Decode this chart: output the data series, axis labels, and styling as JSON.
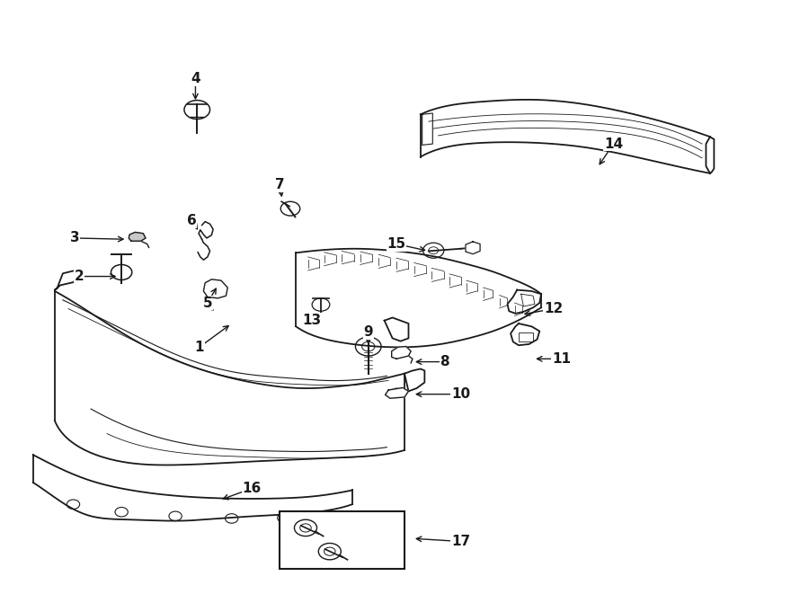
{
  "background_color": "#ffffff",
  "line_color": "#1a1a1a",
  "fig_width": 9.0,
  "fig_height": 6.61,
  "dpi": 100,
  "labels": [
    [
      1,
      0.245,
      0.415,
      0.285,
      0.455
    ],
    [
      2,
      0.095,
      0.535,
      0.145,
      0.535
    ],
    [
      3,
      0.09,
      0.6,
      0.155,
      0.598
    ],
    [
      4,
      0.24,
      0.87,
      0.24,
      0.83
    ],
    [
      5,
      0.255,
      0.49,
      0.268,
      0.52
    ],
    [
      6,
      0.235,
      0.63,
      0.245,
      0.61
    ],
    [
      7,
      0.345,
      0.69,
      0.348,
      0.665
    ],
    [
      8,
      0.55,
      0.39,
      0.51,
      0.39
    ],
    [
      9,
      0.455,
      0.44,
      0.455,
      0.415
    ],
    [
      10,
      0.57,
      0.335,
      0.51,
      0.335
    ],
    [
      11,
      0.695,
      0.395,
      0.66,
      0.395
    ],
    [
      12,
      0.685,
      0.48,
      0.645,
      0.47
    ],
    [
      13,
      0.385,
      0.46,
      0.395,
      0.475
    ],
    [
      14,
      0.76,
      0.76,
      0.74,
      0.72
    ],
    [
      15,
      0.49,
      0.59,
      0.53,
      0.578
    ],
    [
      16,
      0.31,
      0.175,
      0.27,
      0.155
    ],
    [
      17,
      0.57,
      0.085,
      0.51,
      0.09
    ]
  ]
}
